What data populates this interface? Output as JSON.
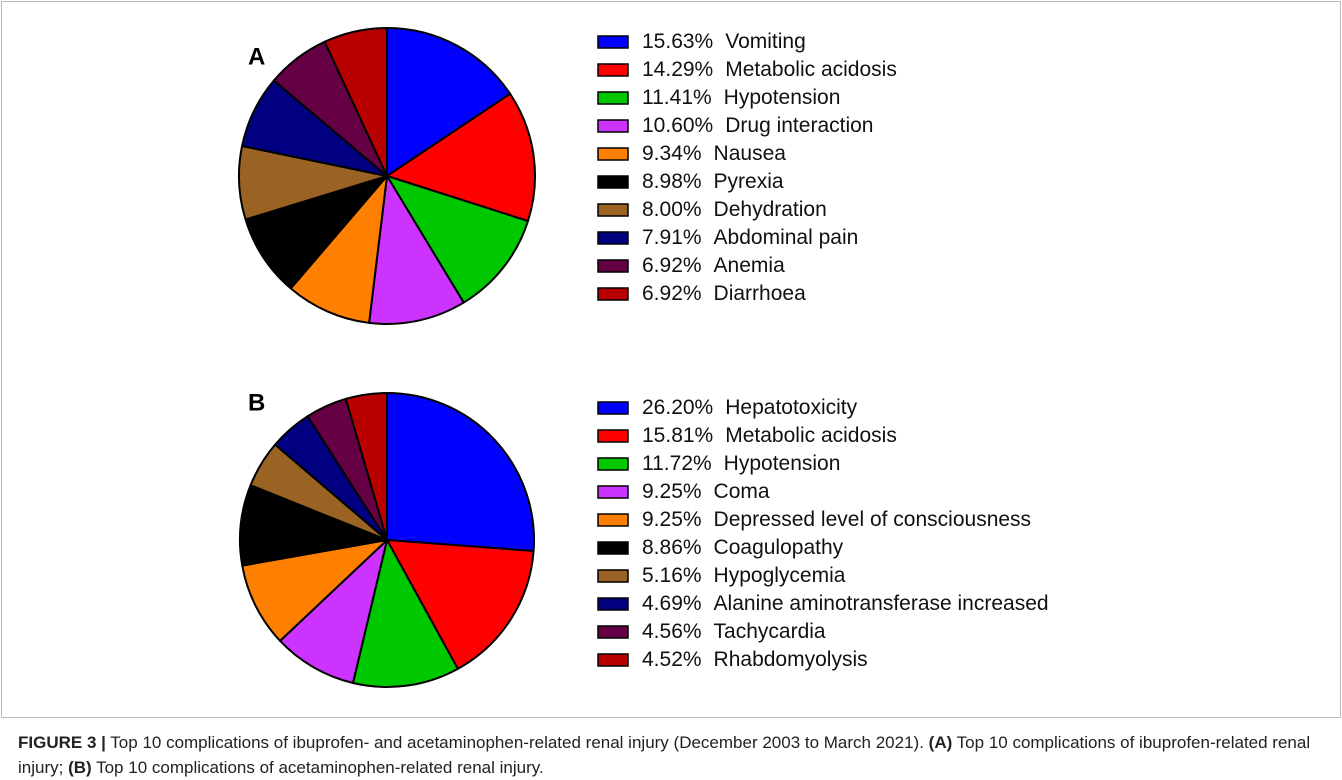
{
  "chart_data": [
    {
      "type": "pie",
      "title": "A",
      "categories": [
        "Vomiting",
        "Metabolic acidosis",
        "Hypotension",
        "Drug interaction",
        "Nausea",
        "Pyrexia",
        "Dehydration",
        "Abdominal pain",
        "Anemia",
        "Diarrhoea"
      ],
      "values": [
        15.63,
        14.29,
        11.41,
        10.6,
        9.34,
        8.98,
        8.0,
        7.91,
        6.92,
        6.92
      ],
      "value_labels": [
        "15.63%",
        "14.29%",
        "11.41%",
        "10.60%",
        "9.34%",
        "8.98%",
        "8.00%",
        "7.91%",
        "6.92%",
        "6.92%"
      ],
      "colors": [
        "#0000ff",
        "#ff0000",
        "#00c800",
        "#cc33ff",
        "#ff8000",
        "#000000",
        "#9a6324",
        "#000080",
        "#660044",
        "#b80000"
      ]
    },
    {
      "type": "pie",
      "title": "B",
      "categories": [
        "Hepatotoxicity",
        "Metabolic acidosis",
        "Hypotension",
        "Coma",
        "Depressed level of consciousness",
        "Coagulopathy",
        "Hypoglycemia",
        "Alanine aminotransferase increased",
        "Tachycardia",
        "Rhabdomyolysis"
      ],
      "values": [
        26.2,
        15.81,
        11.72,
        9.25,
        9.25,
        8.86,
        5.16,
        4.69,
        4.56,
        4.52
      ],
      "value_labels": [
        "26.20%",
        "15.81%",
        "11.72%",
        "9.25%",
        "9.25%",
        "8.86%",
        "5.16%",
        "4.69%",
        "4.56%",
        "4.52%"
      ],
      "colors": [
        "#0000ff",
        "#ff0000",
        "#00c800",
        "#cc33ff",
        "#ff8000",
        "#000000",
        "#9a6324",
        "#000080",
        "#660044",
        "#b80000"
      ]
    }
  ],
  "caption": [
    {
      "text": "FIGURE 3 |",
      "bold": true
    },
    {
      "text": " Top 10 complications of ibuprofen- and acetaminophen-related renal injury (December 2003 to March 2021). ",
      "bold": false
    },
    {
      "text": "(A)",
      "bold": true
    },
    {
      "text": " Top 10 complications of ibuprofen-related renal injury; ",
      "bold": false
    },
    {
      "text": "(B)",
      "bold": true
    },
    {
      "text": " Top 10 complications of acetaminophen-related renal injury.",
      "bold": false
    }
  ]
}
